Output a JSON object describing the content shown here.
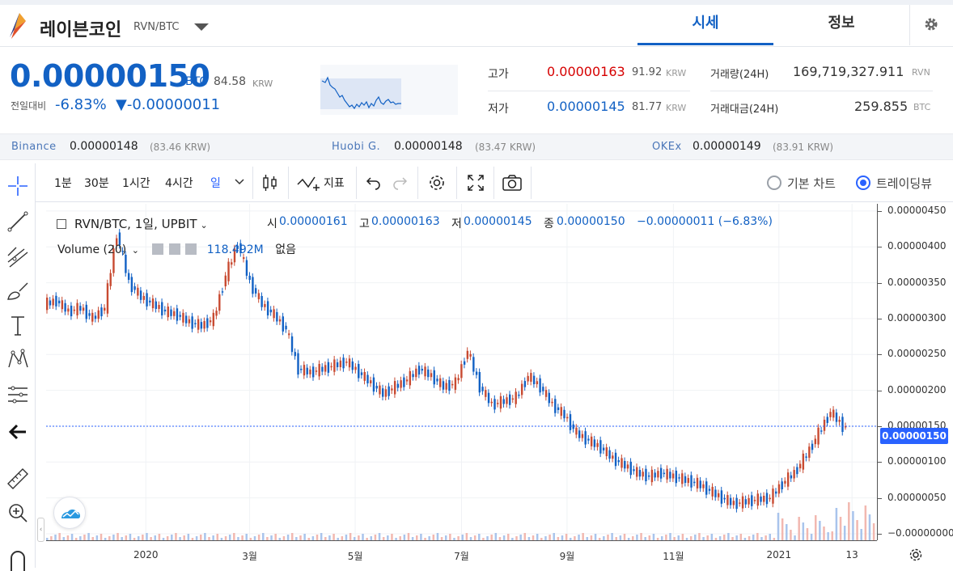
{
  "coin": {
    "name": "레이븐코인",
    "pair": "RVN/BTC"
  },
  "tabs": [
    {
      "label": "시세",
      "active": true
    },
    {
      "label": "정보",
      "active": false
    }
  ],
  "price": {
    "current": "0.00000150",
    "unit": "BTC",
    "krw": "84.58",
    "krw_unit": "KRW",
    "change_label": "전일대비",
    "change_pct": "-6.83%",
    "change_abs": "▼-0.00000011"
  },
  "stats": {
    "high_label": "고가",
    "high_value": "0.00000163",
    "high_krw": "91.92",
    "low_label": "저가",
    "low_value": "0.00000145",
    "low_krw": "81.77",
    "krw_unit": "KRW",
    "volume_label": "거래량(24H)",
    "volume_value": "169,719,327.911",
    "volume_unit": "RVN",
    "amount_label": "거래대금(24H)",
    "amount_value": "259.855",
    "amount_unit": "BTC"
  },
  "exchanges": [
    {
      "name": "Binance",
      "price": "0.00000148",
      "krw": "(83.46 KRW)"
    },
    {
      "name": "Huobi G.",
      "price": "0.00000148",
      "krw": "(83.47 KRW)"
    },
    {
      "name": "OKEx",
      "price": "0.00000149",
      "krw": "(83.91 KRW)"
    }
  ],
  "toolbar": {
    "timeframes": [
      "1분",
      "30분",
      "1시간",
      "4시간",
      "일"
    ],
    "indicator_label": "지표",
    "basic_chart_label": "기본 차트",
    "tradingview_label": "트레이딩뷰"
  },
  "legend": {
    "title": "RVN/BTC, 1일, UPBIT",
    "open_label": "시",
    "open": "0.00000161",
    "high_label": "고",
    "high": "0.00000163",
    "low_label": "저",
    "low": "0.00000145",
    "close_label": "종",
    "close": "0.00000150",
    "change": "−0.00000011 (−6.83%)",
    "volume_label": "Volume (20)",
    "volume_value": "118.492M",
    "volume_extra": "없음"
  },
  "colors": {
    "accent": "#1261c4",
    "up": "#c84a31",
    "down": "#1261c4",
    "tv_blue": "#2962ff"
  },
  "chart_data": {
    "type": "line",
    "title": "",
    "x_tick_labels": [
      "2020",
      "3월",
      "5월",
      "7월",
      "9월",
      "11월",
      "2021",
      "13"
    ],
    "y_tick_labels": [
      "0.00000450",
      "0.00000400",
      "0.00000350",
      "0.00000300",
      "0.00000250",
      "0.00000200",
      "0.00000150",
      "0.00000100",
      "0.00000050",
      "−0.00000000"
    ],
    "ylim": [
      0,
      4.6e-06
    ],
    "last_price": "0.00000150",
    "series": [
      {
        "values_btc": [
          3.2e-06,
          3.25e-06,
          3.1e-06,
          3.15e-06,
          3e-06,
          3.15e-06,
          4.2e-06,
          3.5e-06,
          3.3e-06,
          3.2e-06,
          3.1e-06,
          3.05e-06,
          2.95e-06,
          2.9e-06,
          3e-06,
          3.6e-06,
          4.05e-06,
          3.5e-06,
          3.2e-06,
          3.05e-06,
          2.85e-06,
          2.3e-06,
          2.25e-06,
          2.3e-06,
          2.35e-06,
          2.4e-06,
          2.25e-06,
          2.1e-06,
          1.95e-06,
          2.05e-06,
          2.15e-06,
          2.3e-06,
          2.2e-06,
          2.05e-06,
          2.1e-06,
          2.55e-06,
          2.05e-06,
          1.8e-06,
          1.85e-06,
          1.9e-06,
          2.2e-06,
          2.05e-06,
          1.8e-06,
          1.65e-06,
          1.4e-06,
          1.3e-06,
          1.2e-06,
          1.05e-06,
          9.5e-07,
          8.5e-07,
          8e-07,
          8.5e-07,
          8e-07,
          7.5e-07,
          7e-07,
          6e-07,
          5e-07,
          4.2e-07,
          4.5e-07,
          4.8e-07,
          5e-07,
          7e-07,
          8.5e-07,
          1.1e-06,
          1.4e-06,
          1.7e-06,
          1.5e-06
        ]
      }
    ]
  }
}
